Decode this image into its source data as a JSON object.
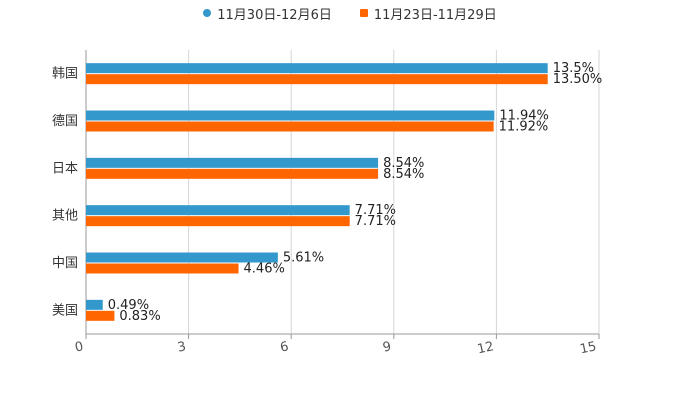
{
  "chart_data": {
    "type": "bar",
    "orientation": "horizontal",
    "categories": [
      "韩国",
      "德国",
      "日本",
      "其他",
      "中国",
      "美国"
    ],
    "series": [
      {
        "name": "11月30日-12月6日",
        "color": "#3399CC",
        "values": [
          13.5,
          11.94,
          8.54,
          7.71,
          5.61,
          0.49
        ],
        "labels": [
          "13.5%",
          "11.94%",
          "8.54%",
          "7.71%",
          "5.61%",
          "0.49%"
        ]
      },
      {
        "name": "11月23日-11月29日",
        "color": "#FF6600",
        "values": [
          13.5,
          11.92,
          8.54,
          7.71,
          4.46,
          0.83
        ],
        "labels": [
          "13.50%",
          "11.92%",
          "8.54%",
          "7.71%",
          "4.46%",
          "0.83%"
        ]
      }
    ],
    "xlim": [
      0,
      15
    ],
    "xticks": [
      0,
      3,
      6,
      9,
      12,
      15
    ],
    "grid": true,
    "legend_position": "top"
  }
}
